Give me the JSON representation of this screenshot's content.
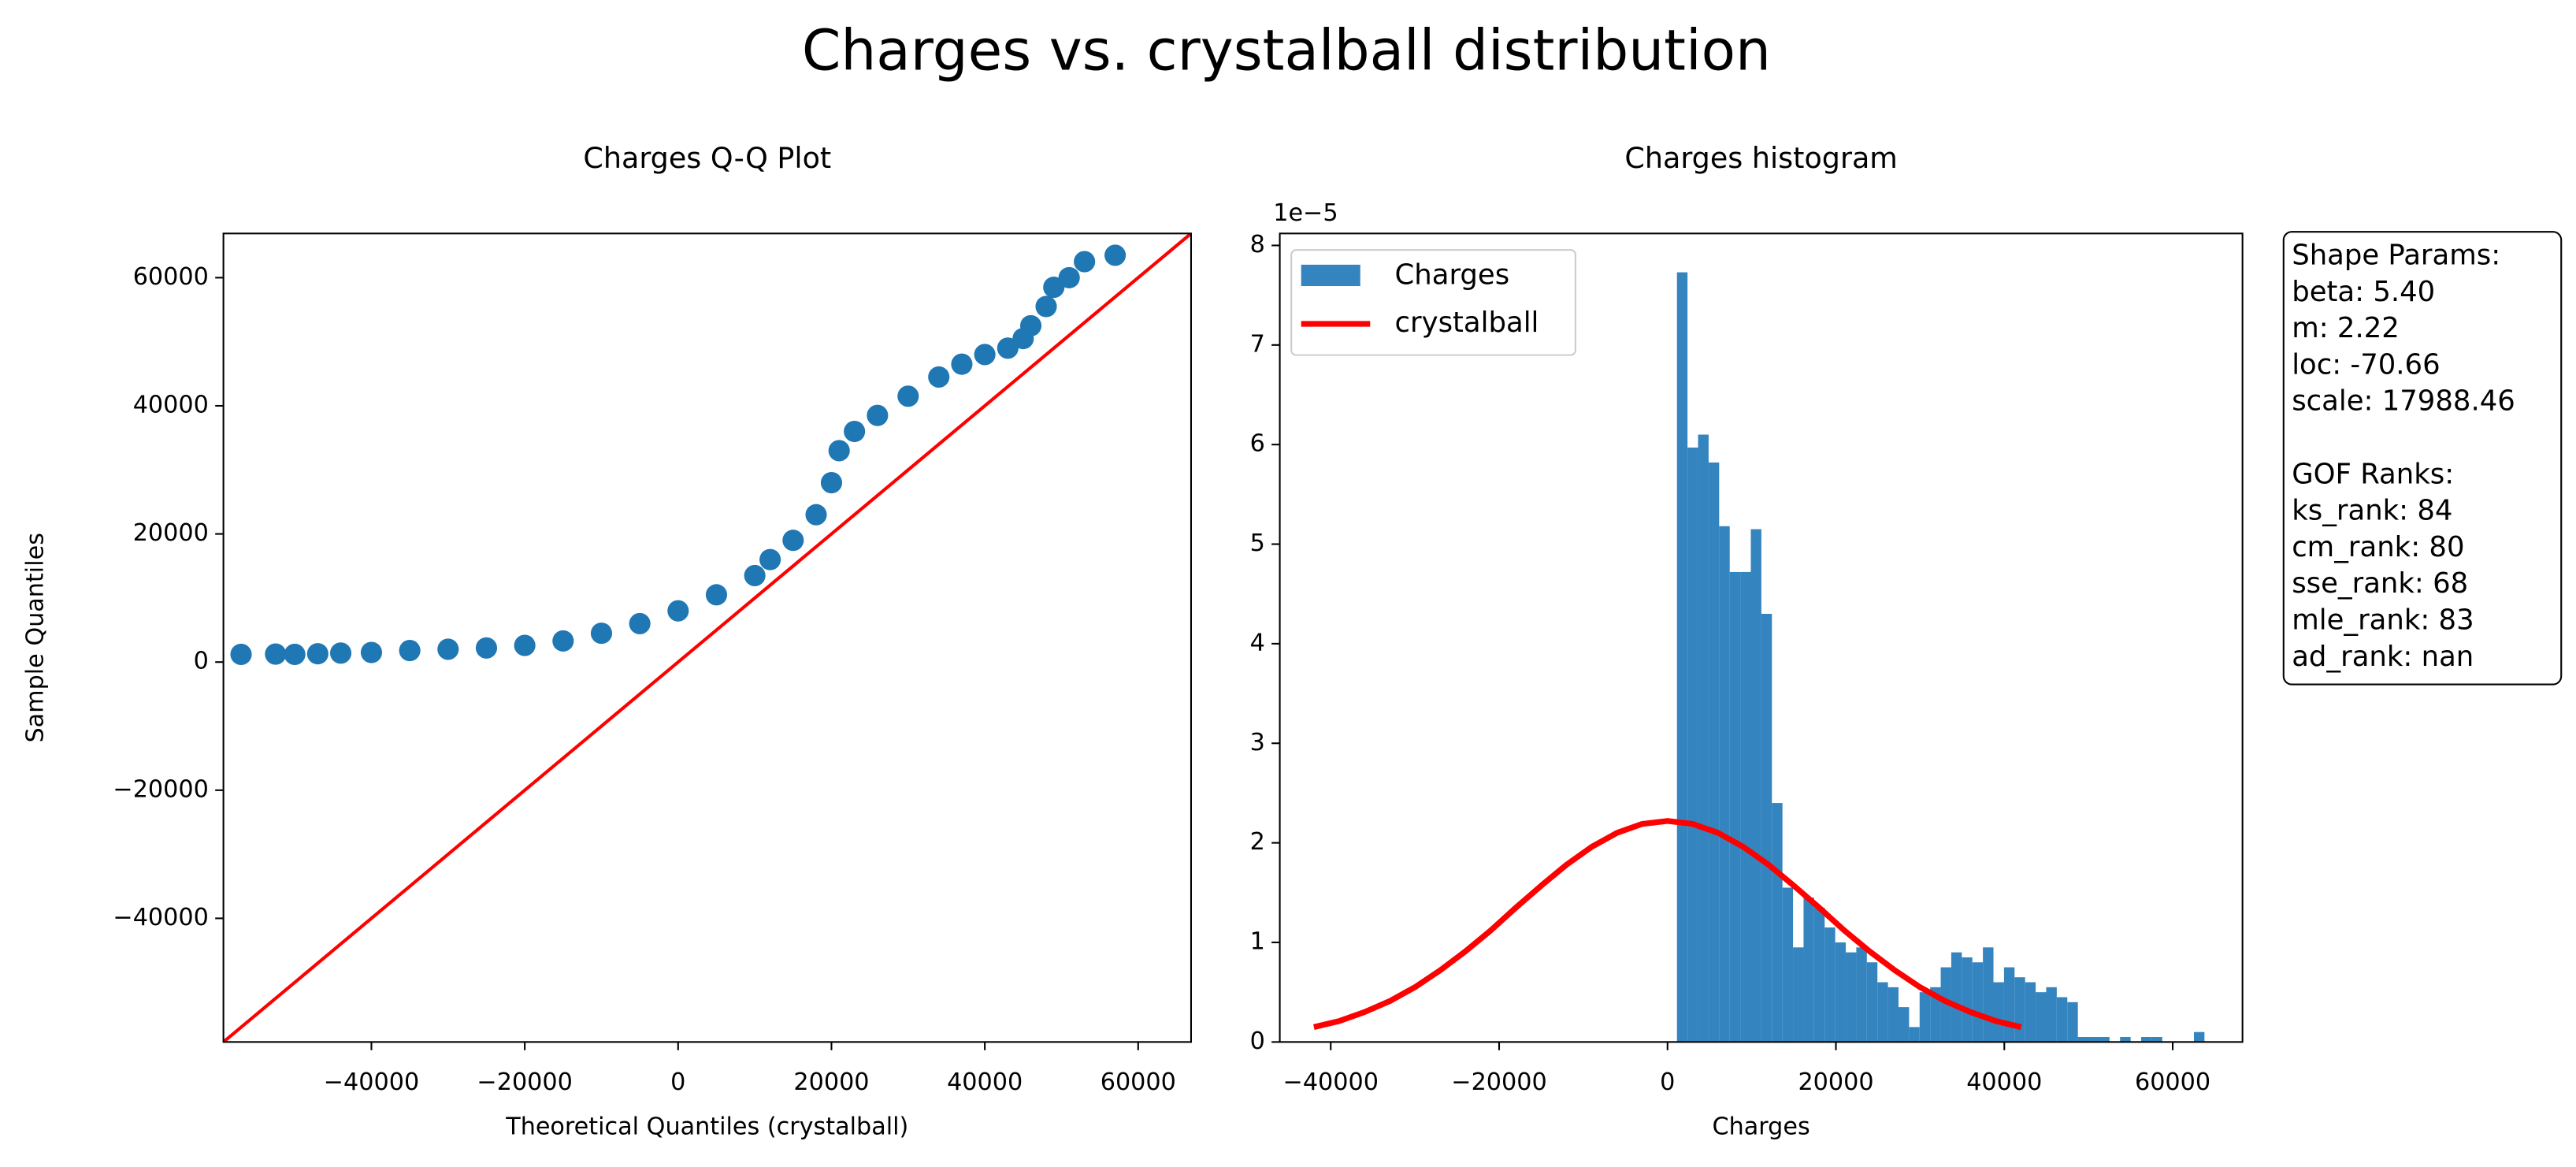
{
  "title": "Charges vs. crystalball distribution",
  "chart_data": [
    {
      "type": "scatter",
      "title": "Charges Q-Q Plot",
      "xlabel": "Theoretical Quantiles (crystalball)",
      "ylabel": "Sample Quantiles",
      "xlim": [
        -59300,
        66900
      ],
      "ylim": [
        -59300,
        66900
      ],
      "xticks": [
        {
          "value": -40000,
          "label": "−40000"
        },
        {
          "value": -20000,
          "label": "−20000"
        },
        0,
        20000,
        40000,
        60000
      ],
      "yticks": [
        {
          "value": -40000,
          "label": "−40000"
        },
        {
          "value": -20000,
          "label": "−20000"
        },
        0,
        20000,
        40000,
        60000
      ],
      "series": [
        {
          "type": "scatter",
          "color": "#1f77b4",
          "x": [
            -57000,
            -52500,
            -50000,
            -47000,
            -44000,
            -40000,
            -35000,
            -30000,
            -25000,
            -20000,
            -15000,
            -10000,
            -5000,
            0,
            5000,
            10000,
            12000,
            15000,
            18000,
            20000,
            21000,
            23000,
            26000,
            30000,
            34000,
            37000,
            40000,
            43000,
            45000,
            46000,
            48000,
            49000,
            51000,
            53000,
            57000
          ],
          "values": [
            1200,
            1250,
            1200,
            1300,
            1400,
            1500,
            1800,
            2000,
            2200,
            2600,
            3300,
            4500,
            6000,
            8000,
            10500,
            13500,
            16000,
            19000,
            23000,
            28000,
            33000,
            36000,
            38500,
            41500,
            44500,
            46500,
            48000,
            49000,
            50500,
            52500,
            55500,
            58500,
            60000,
            62500,
            63500
          ]
        },
        {
          "type": "line",
          "color": "#ff0000",
          "x": [
            -59300,
            66900
          ],
          "values": [
            -59300,
            66900
          ]
        }
      ]
    },
    {
      "type": "histogram",
      "title": "Charges histogram",
      "xlabel": "Charges",
      "y_offset_label": "1e−5",
      "xlim": [
        -46050,
        68290
      ],
      "ylim": [
        0,
        8.12
      ],
      "xticks": [
        {
          "value": -40000,
          "label": "−40000"
        },
        {
          "value": -20000,
          "label": "−20000"
        },
        0,
        20000,
        40000,
        60000
      ],
      "yticks": [
        0,
        1,
        2,
        3,
        4,
        5,
        6,
        7,
        8
      ],
      "legend": "upper left",
      "series": [
        {
          "type": "histogram",
          "name": "Charges",
          "color": "#3484c0",
          "bins": [
            1122,
            2375,
            3628,
            4881,
            6134,
            7387,
            8640,
            9893,
            11146,
            12399,
            13652,
            14905,
            16158,
            17411,
            18664,
            19917,
            21170,
            22423,
            23676,
            24929,
            26182,
            27435,
            28688,
            29941,
            31194,
            32447,
            33700,
            34953,
            36206,
            37459,
            38712,
            39965,
            41218,
            42471,
            43724,
            44977,
            46230,
            47483,
            48736,
            49989,
            51242,
            52495,
            53748,
            55001,
            56254,
            57507,
            58760,
            60013,
            61266,
            62519,
            63772
          ],
          "values": [
            7.73,
            5.97,
            6.1,
            5.82,
            5.18,
            4.72,
            4.72,
            5.15,
            4.3,
            2.4,
            1.55,
            0.95,
            1.45,
            1.35,
            1.15,
            1.0,
            0.9,
            0.95,
            0.8,
            0.6,
            0.55,
            0.35,
            0.15,
            0.5,
            0.55,
            0.75,
            0.9,
            0.85,
            0.8,
            0.95,
            0.6,
            0.75,
            0.65,
            0.6,
            0.5,
            0.55,
            0.45,
            0.4,
            0.05,
            0.05,
            0.05,
            0,
            0.05,
            0,
            0.05,
            0.05,
            0,
            0,
            0,
            0.1
          ]
        },
        {
          "type": "line",
          "name": "crystalball",
          "color": "#ff0000",
          "x": [
            -42000,
            -39000,
            -36000,
            -33000,
            -30000,
            -27000,
            -24000,
            -21000,
            -18000,
            -15000,
            -12000,
            -9000,
            -6000,
            -3000,
            0,
            3000,
            6000,
            9000,
            12000,
            15000,
            18000,
            21000,
            24000,
            27000,
            30000,
            33000,
            36000,
            39000,
            42000
          ],
          "values": [
            0.15,
            0.21,
            0.3,
            0.41,
            0.55,
            0.72,
            0.91,
            1.12,
            1.35,
            1.57,
            1.78,
            1.96,
            2.1,
            2.19,
            2.22,
            2.19,
            2.1,
            1.96,
            1.78,
            1.57,
            1.35,
            1.12,
            0.91,
            0.72,
            0.55,
            0.41,
            0.3,
            0.21,
            0.15
          ]
        }
      ],
      "annotations": [
        [
          "Shape Params:",
          "beta: 5.40",
          "m: 2.22",
          "loc: -70.66",
          "scale: 17988.46"
        ],
        [
          "GOF Ranks:",
          "ks_rank: 84",
          "cm_rank: 80",
          "sse_rank: 68",
          "mle_rank: 83",
          "ad_rank: nan"
        ]
      ]
    }
  ]
}
